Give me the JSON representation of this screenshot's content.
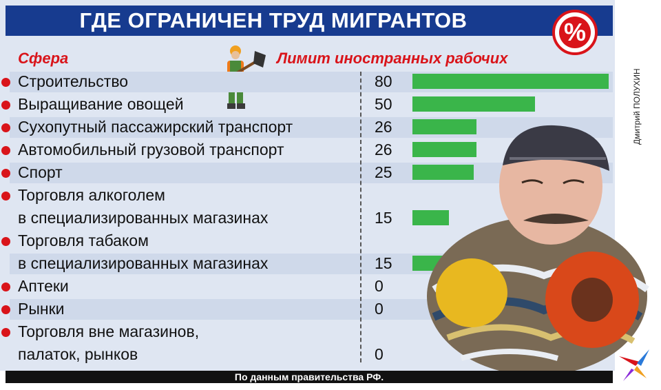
{
  "title": "ГДЕ ОГРАНИЧЕН ТРУД МИГРАНТОВ",
  "percent_icon_text": "%",
  "header_left": "Сфера",
  "header_right": "Лимит иностранных рабочих",
  "source": "По данным правительства РФ.",
  "photo_credit": "Дмитрий ПОЛУХИН",
  "colors": {
    "title_bg": "#173b8f",
    "accent_red": "#d9141a",
    "bar_green": "#3ab54a"
  },
  "chart_data": {
    "type": "bar",
    "orientation": "horizontal",
    "xlim": [
      0,
      80
    ],
    "categories": [
      [
        "Строительство"
      ],
      [
        "Выращивание овощей"
      ],
      [
        "Сухопутный пассажирский транспорт"
      ],
      [
        "Автомобильный грузовой транспорт"
      ],
      [
        "Спорт"
      ],
      [
        "Торговля алкоголем",
        "в специализированных магазинах"
      ],
      [
        "Торговля табаком",
        "в специализированных магазинах"
      ],
      [
        "Аптеки"
      ],
      [
        "Рынки"
      ],
      [
        "Торговля вне магазинов,",
        "палаток, рынков"
      ]
    ],
    "values": [
      80,
      50,
      26,
      26,
      25,
      15,
      15,
      0,
      0,
      0
    ],
    "value_labels": [
      "80",
      "50",
      "26",
      "26",
      "25",
      "15",
      "15",
      "0",
      "0",
      "0"
    ]
  }
}
